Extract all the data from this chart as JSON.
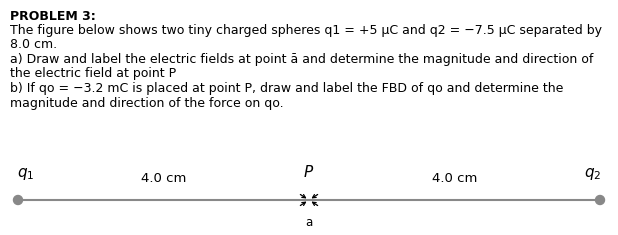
{
  "title_text": "PROBLEM 3:",
  "line1": "The figure below shows two tiny charged spheres q1 = +5 μC and q2 = −7.5 μC separated by",
  "line2": "8.0 cm.",
  "line3": "a) Draw and label the electric fields at point ā and determine the magnitude and direction of",
  "line4": "the electric field at point P",
  "line5": "b) If qo = −3.2 mC is placed at point P, draw and label the FBD of qo and determine the",
  "line6": "magnitude and direction of the force on qo.",
  "q1_label": "$q_1$",
  "q2_label": "$q_2$",
  "P_label": "$P$",
  "a_label": "a",
  "left_dist_label": "4.0 cm",
  "right_dist_label": "4.0 cm",
  "dot_color": "#888888",
  "line_color": "#888888",
  "text_color": "#000000",
  "bg_color": "#ffffff",
  "font_size_body": 9.0,
  "font_size_title": 9.0,
  "font_size_labels": 11,
  "font_size_dist": 9.5
}
